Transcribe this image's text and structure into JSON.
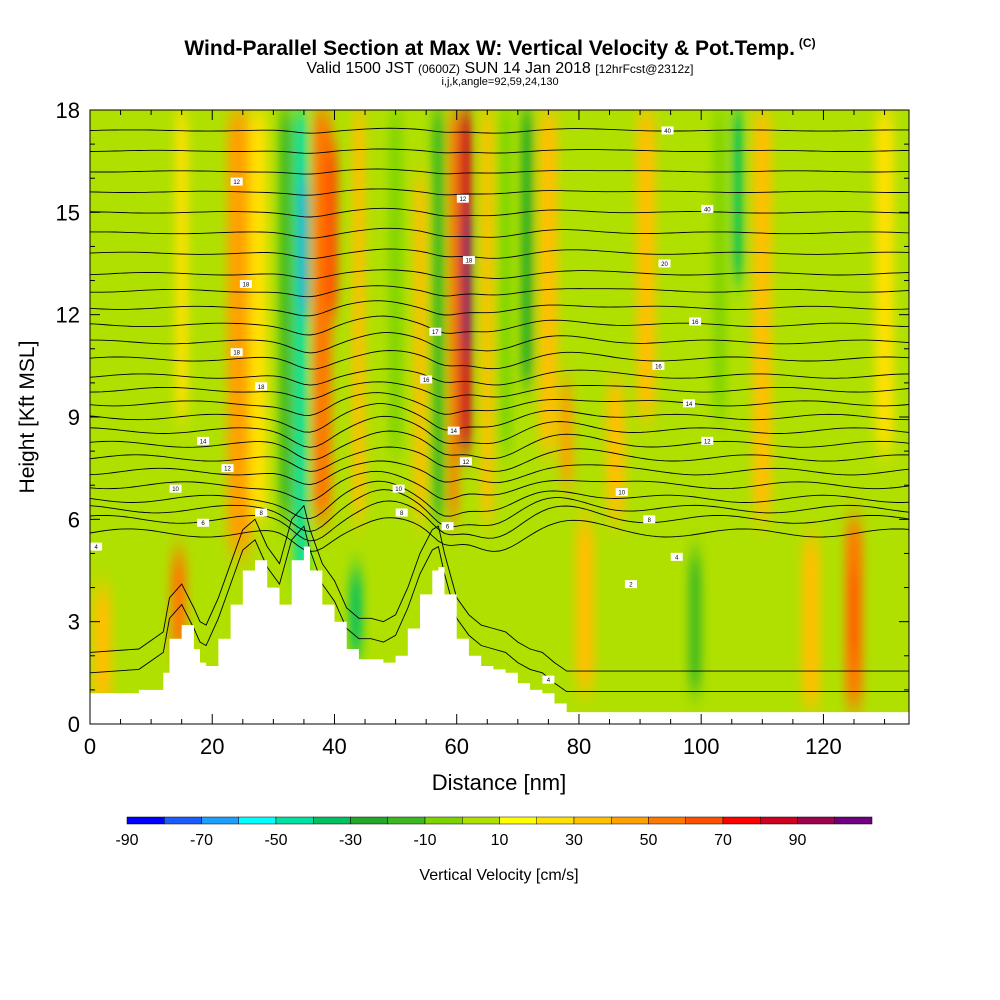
{
  "title": {
    "main": "Wind-Parallel Section at Max W: Vertical Velocity & Pot.Temp.",
    "copyright": "(C)",
    "valid_a": "Valid 1500 JST",
    "valid_b": "(0600Z)",
    "valid_c": "SUN 14 Jan 2018",
    "valid_d": "[12hrFcst@2312z]",
    "indices": "i,j,k,angle=92,59,24,130"
  },
  "chart_data": {
    "type": "heatmap",
    "xlabel": "Distance [nm]",
    "ylabel": "Height [Kft MSL]",
    "xlim": [
      0,
      134
    ],
    "ylim": [
      0,
      18
    ],
    "xticks": [
      0,
      20,
      40,
      60,
      80,
      100,
      120
    ],
    "yticks": [
      0,
      3,
      6,
      9,
      12,
      15,
      18
    ],
    "colorbar": {
      "label": "Vertical Velocity [cm/s]",
      "levels": [
        -95,
        -85,
        -75,
        -65,
        -55,
        -45,
        -35,
        -25,
        -15,
        -5,
        5,
        15,
        25,
        35,
        45,
        55,
        65,
        75,
        85,
        95
      ],
      "tick_labels": [
        "-90",
        "-70",
        "-50",
        "-30",
        "-10",
        "10",
        "30",
        "50",
        "70",
        "90"
      ],
      "colors": [
        "#0000ff",
        "#1c5cff",
        "#1ca0ff",
        "#00ffff",
        "#00e0a0",
        "#00c060",
        "#20a828",
        "#3cb820",
        "#7ed400",
        "#b0e000",
        "#ffff00",
        "#ffe000",
        "#ffc000",
        "#ffa000",
        "#ff7800",
        "#ff5000",
        "#ff0000",
        "#d00020",
        "#a00050",
        "#700080"
      ]
    },
    "terrain_kft": {
      "x": [
        0,
        8,
        12,
        13,
        15,
        17,
        18,
        19,
        21,
        23,
        25,
        27,
        29,
        31,
        33,
        35,
        36,
        38,
        40,
        42,
        44,
        46,
        48,
        50,
        52,
        54,
        56,
        57,
        58,
        60,
        62,
        64,
        66,
        68,
        70,
        72,
        74,
        76,
        78,
        80,
        134
      ],
      "y": [
        0.9,
        1.0,
        1.5,
        2.5,
        2.9,
        2.2,
        1.8,
        1.7,
        2.5,
        3.5,
        4.5,
        4.8,
        4.0,
        3.5,
        4.8,
        5.2,
        4.5,
        3.5,
        3.0,
        2.2,
        1.9,
        1.9,
        1.8,
        2.0,
        2.8,
        3.8,
        4.5,
        4.6,
        3.8,
        2.5,
        2.0,
        1.7,
        1.6,
        1.5,
        1.2,
        1.0,
        0.9,
        0.6,
        0.35,
        0.35,
        0.35
      ]
    },
    "vertical_velocity_bands": [
      {
        "x": 2,
        "width": 3,
        "y0": 0.5,
        "y1": 4,
        "value": 20
      },
      {
        "x": 14.5,
        "width": 2.5,
        "y0": 2,
        "y1": 5,
        "value": 40
      },
      {
        "x": 15,
        "width": 2,
        "y0": 9,
        "y1": 18,
        "value": 10
      },
      {
        "x": 24.5,
        "width": 4,
        "y0": 5,
        "y1": 18,
        "value": 35
      },
      {
        "x": 27.5,
        "width": 3,
        "y0": 6,
        "y1": 18,
        "value": 15
      },
      {
        "x": 32,
        "width": 2,
        "y0": 6,
        "y1": 18,
        "value": -30
      },
      {
        "x": 34.5,
        "width": 2.2,
        "y0": 4,
        "y1": 18,
        "value": -60
      },
      {
        "x": 35,
        "width": 1.2,
        "y0": 12,
        "y1": 16,
        "value": -72
      },
      {
        "x": 38,
        "width": 3,
        "y0": 6,
        "y1": 18,
        "value": 40
      },
      {
        "x": 39.5,
        "width": 2,
        "y0": 12,
        "y1": 17,
        "value": 50
      },
      {
        "x": 43.5,
        "width": 2,
        "y0": 2,
        "y1": 4.5,
        "value": -50
      },
      {
        "x": 44,
        "width": 2,
        "y0": 6,
        "y1": 18,
        "value": 20
      },
      {
        "x": 50,
        "width": 2,
        "y0": 8,
        "y1": 18,
        "value": -20
      },
      {
        "x": 54,
        "width": 2,
        "y0": 6,
        "y1": 16,
        "value": 20
      },
      {
        "x": 57,
        "width": 2,
        "y0": 6,
        "y1": 18,
        "value": -30
      },
      {
        "x": 59.5,
        "width": 1.5,
        "y0": 6,
        "y1": 18,
        "value": 40
      },
      {
        "x": 61.4,
        "width": 2,
        "y0": 8,
        "y1": 18,
        "value": 75
      },
      {
        "x": 61.8,
        "width": 1,
        "y0": 11,
        "y1": 15,
        "value": 98
      },
      {
        "x": 65,
        "width": 2,
        "y0": 6,
        "y1": 18,
        "value": 20
      },
      {
        "x": 68,
        "width": 2,
        "y0": 8,
        "y1": 18,
        "value": -20
      },
      {
        "x": 71.5,
        "width": 1.8,
        "y0": 10,
        "y1": 18,
        "value": -40
      },
      {
        "x": 75,
        "width": 3,
        "y0": 8,
        "y1": 18,
        "value": 20
      },
      {
        "x": 78,
        "width": 2,
        "y0": 7,
        "y1": 10,
        "value": 30
      },
      {
        "x": 81,
        "width": 3,
        "y0": 1,
        "y1": 6,
        "value": 20
      },
      {
        "x": 86,
        "width": 3,
        "y0": 6,
        "y1": 10,
        "value": 25
      },
      {
        "x": 91,
        "width": 3,
        "y0": 9,
        "y1": 18,
        "value": 20
      },
      {
        "x": 99,
        "width": 2,
        "y0": 1,
        "y1": 5,
        "value": -30
      },
      {
        "x": 103,
        "width": 2,
        "y0": 9,
        "y1": 18,
        "value": -20
      },
      {
        "x": 106,
        "width": 1.6,
        "y0": 13,
        "y1": 18,
        "value": -45
      },
      {
        "x": 110,
        "width": 3,
        "y0": 6,
        "y1": 18,
        "value": 20
      },
      {
        "x": 118,
        "width": 3,
        "y0": 0.5,
        "y1": 5.5,
        "value": 20
      },
      {
        "x": 125,
        "width": 2.8,
        "y0": 0.5,
        "y1": 6,
        "value": 40
      },
      {
        "x": 125,
        "width": 1.2,
        "y0": 2,
        "y1": 4.5,
        "value": 55
      },
      {
        "x": 130,
        "width": 3,
        "y0": 8,
        "y1": 18,
        "value": 15
      }
    ],
    "theta_contours": {
      "base_kft": [
        5.6,
        6.0,
        6.3,
        6.6,
        7.0,
        7.4,
        7.8,
        8.2,
        8.6,
        9.0,
        9.4,
        9.8,
        10.2,
        10.7,
        11.2,
        11.7,
        12.2,
        12.7,
        13.2,
        13.8,
        14.4,
        15.0,
        15.6,
        16.2,
        16.8,
        17.4
      ],
      "perturbation": [
        {
          "x": 36,
          "width": 4,
          "dy": -0.6
        },
        {
          "x": 48,
          "width": 6,
          "dy": 0.5
        },
        {
          "x": 58,
          "width": 3,
          "dy": -0.4
        },
        {
          "x": 66,
          "width": 6,
          "dy": -0.5
        },
        {
          "x": 77,
          "width": 8,
          "dy": 0.3
        }
      ],
      "labels": [
        {
          "text": "4",
          "x": 1,
          "y": 5.2
        },
        {
          "text": "6",
          "x": 18.5,
          "y": 5.9
        },
        {
          "text": "8",
          "x": 28,
          "y": 6.2
        },
        {
          "text": "10",
          "x": 14,
          "y": 6.9
        },
        {
          "text": "12",
          "x": 22.5,
          "y": 7.5
        },
        {
          "text": "14",
          "x": 18.5,
          "y": 8.3
        },
        {
          "text": "18",
          "x": 28,
          "y": 9.9
        },
        {
          "text": "18",
          "x": 24,
          "y": 10.9
        },
        {
          "text": "18",
          "x": 25.5,
          "y": 12.9
        },
        {
          "text": "12",
          "x": 24,
          "y": 15.9
        },
        {
          "text": "10",
          "x": 50.5,
          "y": 6.9
        },
        {
          "text": "8",
          "x": 51,
          "y": 6.2
        },
        {
          "text": "6",
          "x": 58.5,
          "y": 5.8
        },
        {
          "text": "12",
          "x": 61.5,
          "y": 7.7
        },
        {
          "text": "14",
          "x": 59.5,
          "y": 8.6
        },
        {
          "text": "16",
          "x": 55,
          "y": 10.1
        },
        {
          "text": "17",
          "x": 56.5,
          "y": 11.5
        },
        {
          "text": "18",
          "x": 62,
          "y": 13.6
        },
        {
          "text": "12",
          "x": 61,
          "y": 15.4
        },
        {
          "text": "4",
          "x": 75,
          "y": 1.3
        },
        {
          "text": "2",
          "x": 88.5,
          "y": 4.1
        },
        {
          "text": "4",
          "x": 96,
          "y": 4.9
        },
        {
          "text": "8",
          "x": 91.5,
          "y": 6.0
        },
        {
          "text": "10",
          "x": 87,
          "y": 6.8
        },
        {
          "text": "12",
          "x": 101,
          "y": 8.3
        },
        {
          "text": "14",
          "x": 98,
          "y": 9.4
        },
        {
          "text": "16",
          "x": 93,
          "y": 10.5
        },
        {
          "text": "16",
          "x": 99,
          "y": 11.8
        },
        {
          "text": "20",
          "x": 94,
          "y": 13.5
        },
        {
          "text": "40",
          "x": 101,
          "y": 15.1
        },
        {
          "text": "40",
          "x": 94.5,
          "y": 17.4
        }
      ]
    }
  }
}
